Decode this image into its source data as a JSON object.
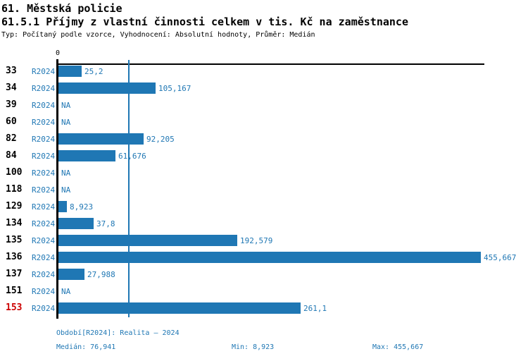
{
  "header": {
    "title": "61. Městská policie",
    "subtitle": "61.5.1 Příjmy z vlastní činnosti celkem v tis. Kč na zaměstnance",
    "meta_line": "Typ: Počítaný podle vzorce, Vyhodnocení: Absolutní hodnoty, Průměr: Medián"
  },
  "colors": {
    "bar": "#1f77b4",
    "blue_text": "#1f77b4",
    "highlight": "#cc0000",
    "axis": "#000000"
  },
  "chart_data": {
    "type": "bar",
    "orientation": "horizontal",
    "title": "61.5.1 Příjmy z vlastní činnosti celkem v tis. Kč na zaměstnance",
    "xlabel": "tis. Kč na zaměstnance",
    "ylabel": "",
    "categories": [
      "33",
      "34",
      "39",
      "60",
      "82",
      "84",
      "100",
      "118",
      "129",
      "134",
      "135",
      "136",
      "137",
      "151",
      "153"
    ],
    "series_label": "R2024",
    "values": [
      25.2,
      105.167,
      null,
      null,
      92.205,
      61.676,
      null,
      null,
      8.923,
      37.8,
      192.579,
      455.667,
      27.988,
      null,
      261.1
    ],
    "value_labels": [
      "25,2",
      "105,167",
      "NA",
      "NA",
      "92,205",
      "61,676",
      "NA",
      "NA",
      "8,923",
      "37,8",
      "192,579",
      "455,667",
      "27,988",
      "NA",
      "261,1"
    ],
    "highlighted_categories": [
      "153"
    ],
    "xlim": [
      0,
      455.667
    ],
    "x_axis_tick": "0",
    "median_line_value": 76.941,
    "grid": false,
    "legend_position": "none"
  },
  "footer": {
    "period": "Období[R2024]: Realita – 2024",
    "median": "Medián: 76,941",
    "min": "Min: 8,923",
    "max": "Max: 455,667"
  }
}
